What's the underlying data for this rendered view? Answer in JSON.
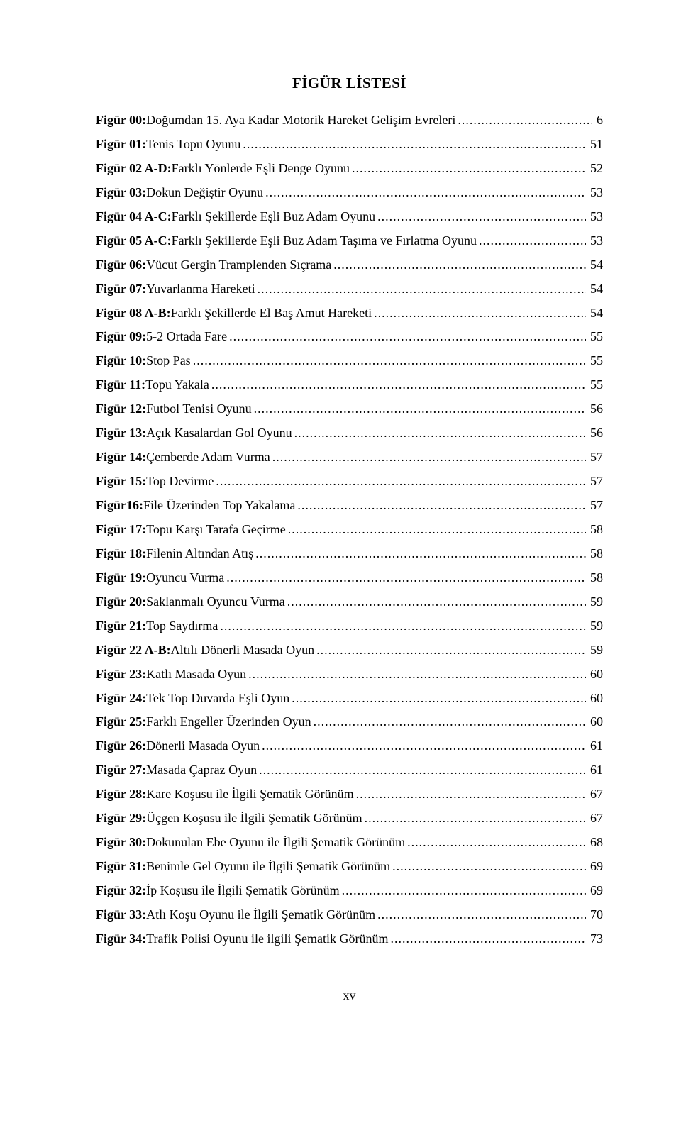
{
  "title": "FİGÜR LİSTESİ",
  "entries": [
    {
      "label": "Figür 00:",
      "text": " Doğumdan 15. Aya Kadar Motorik Hareket Gelişim Evreleri",
      "page": "6"
    },
    {
      "label": "Figür 01:",
      "text": " Tenis Topu Oyunu",
      "page": "51"
    },
    {
      "label": "Figür 02 A-D:",
      "text": " Farklı Yönlerde Eşli Denge Oyunu",
      "page": "52"
    },
    {
      "label": "Figür 03:",
      "text": " Dokun Değiştir Oyunu",
      "page": "53"
    },
    {
      "label": "Figür 04 A-C:",
      "text": " Farklı Şekillerde Eşli Buz Adam Oyunu",
      "page": "53"
    },
    {
      "label": "Figür 05 A-C:",
      "text": " Farklı Şekillerde Eşli Buz Adam Taşıma ve Fırlatma Oyunu",
      "page": "53"
    },
    {
      "label": "Figür 06:",
      "text": " Vücut Gergin Tramplenden Sıçrama",
      "page": "54"
    },
    {
      "label": "Figür 07:",
      "text": " Yuvarlanma Hareketi",
      "page": "54"
    },
    {
      "label": "Figür 08 A-B:",
      "text": " Farklı Şekillerde El Baş Amut Hareketi",
      "page": "54"
    },
    {
      "label": "Figür 09:",
      "text": " 5-2 Ortada Fare",
      "page": "55"
    },
    {
      "label": "Figür 10:",
      "text": " Stop Pas",
      "page": "55"
    },
    {
      "label": "Figür 11:",
      "text": " Topu Yakala",
      "page": "55"
    },
    {
      "label": "Figür 12:",
      "text": " Futbol Tenisi Oyunu",
      "page": "56"
    },
    {
      "label": "Figür 13:",
      "text": " Açık Kasalardan Gol Oyunu",
      "page": "56"
    },
    {
      "label": "Figür 14:",
      "text": " Çemberde Adam Vurma",
      "page": "57"
    },
    {
      "label": "Figür 15:",
      "text": " Top Devirme",
      "page": "57"
    },
    {
      "label": "Figür16:",
      "text": " File Üzerinden Top Yakalama",
      "page": "57"
    },
    {
      "label": "Figür 17:",
      "text": " Topu Karşı Tarafa Geçirme",
      "page": "58"
    },
    {
      "label": "Figür 18:",
      "text": " Filenin Altından Atış",
      "page": "58"
    },
    {
      "label": "Figür 19:",
      "text": " Oyuncu Vurma",
      "page": "58"
    },
    {
      "label": "Figür 20:",
      "text": " Saklanmalı Oyuncu Vurma",
      "page": "59"
    },
    {
      "label": "Figür 21:",
      "text": " Top Saydırma",
      "page": "59"
    },
    {
      "label": "Figür 22 A-B:",
      "text": " Altılı Dönerli Masada Oyun",
      "page": "59"
    },
    {
      "label": "Figür 23:",
      "text": " Katlı Masada Oyun",
      "page": "60"
    },
    {
      "label": "Figür 24:",
      "text": " Tek Top Duvarda Eşli Oyun",
      "page": "60"
    },
    {
      "label": "Figür 25:",
      "text": " Farklı Engeller Üzerinden Oyun",
      "page": "60"
    },
    {
      "label": "Figür 26:",
      "text": " Dönerli Masada Oyun",
      "page": "61"
    },
    {
      "label": "Figür 27:",
      "text": " Masada Çapraz Oyun",
      "page": "61"
    },
    {
      "label": "Figür 28:",
      "text": " Kare Koşusu ile İlgili Şematik Görünüm",
      "page": "67"
    },
    {
      "label": "Figür 29:",
      "text": " Üçgen Koşusu ile İlgili Şematik Görünüm",
      "page": "67"
    },
    {
      "label": "Figür 30:",
      "text": " Dokunulan Ebe Oyunu ile İlgili Şematik Görünüm",
      "page": "68"
    },
    {
      "label": "Figür 31:",
      "text": " Benimle Gel Oyunu ile İlgili Şematik Görünüm",
      "page": "69"
    },
    {
      "label": "Figür 32:",
      "text": " İp Koşusu ile İlgili Şematik Görünüm",
      "page": "69"
    },
    {
      "label": "Figür 33:",
      "text": " Atlı Koşu Oyunu ile İlgili Şematik Görünüm",
      "page": "70"
    },
    {
      "label": "Figür 34:",
      "text": " Trafik Polisi Oyunu ile ilgili Şematik Görünüm",
      "page": "73"
    }
  ],
  "page_number": "xv"
}
